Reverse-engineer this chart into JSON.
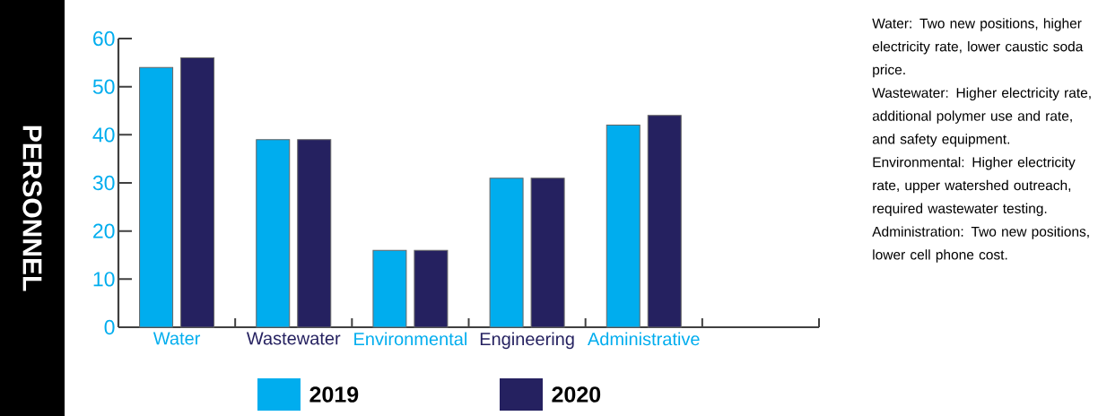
{
  "chart_data": {
    "type": "bar",
    "ylabel": "PERSONNEL",
    "categories": [
      "Water",
      "Wastewater",
      "Environmental",
      "Engineering",
      "Administrative"
    ],
    "series": [
      {
        "name": "2019",
        "color": "#00adee",
        "values": [
          54,
          39,
          16,
          31,
          42
        ]
      },
      {
        "name": "2020",
        "color": "#252160",
        "values": [
          56,
          39,
          16,
          31,
          44
        ]
      }
    ],
    "ylim": [
      0,
      60
    ],
    "yticks": [
      0,
      10,
      20,
      30,
      40,
      50,
      60
    ],
    "legend": "bottom",
    "grid": false,
    "annotations": [
      "Water: Two new positions, higher electricity rate, lower caustic soda price.",
      "Wastewater: Higher electricity rate, additional polymer use and rate, and safety equipment.",
      "Environmental: Higher electricity rate, upper watershed outreach, required wastewater testing.",
      "Administration: Two new positions, lower cell phone cost."
    ]
  }
}
